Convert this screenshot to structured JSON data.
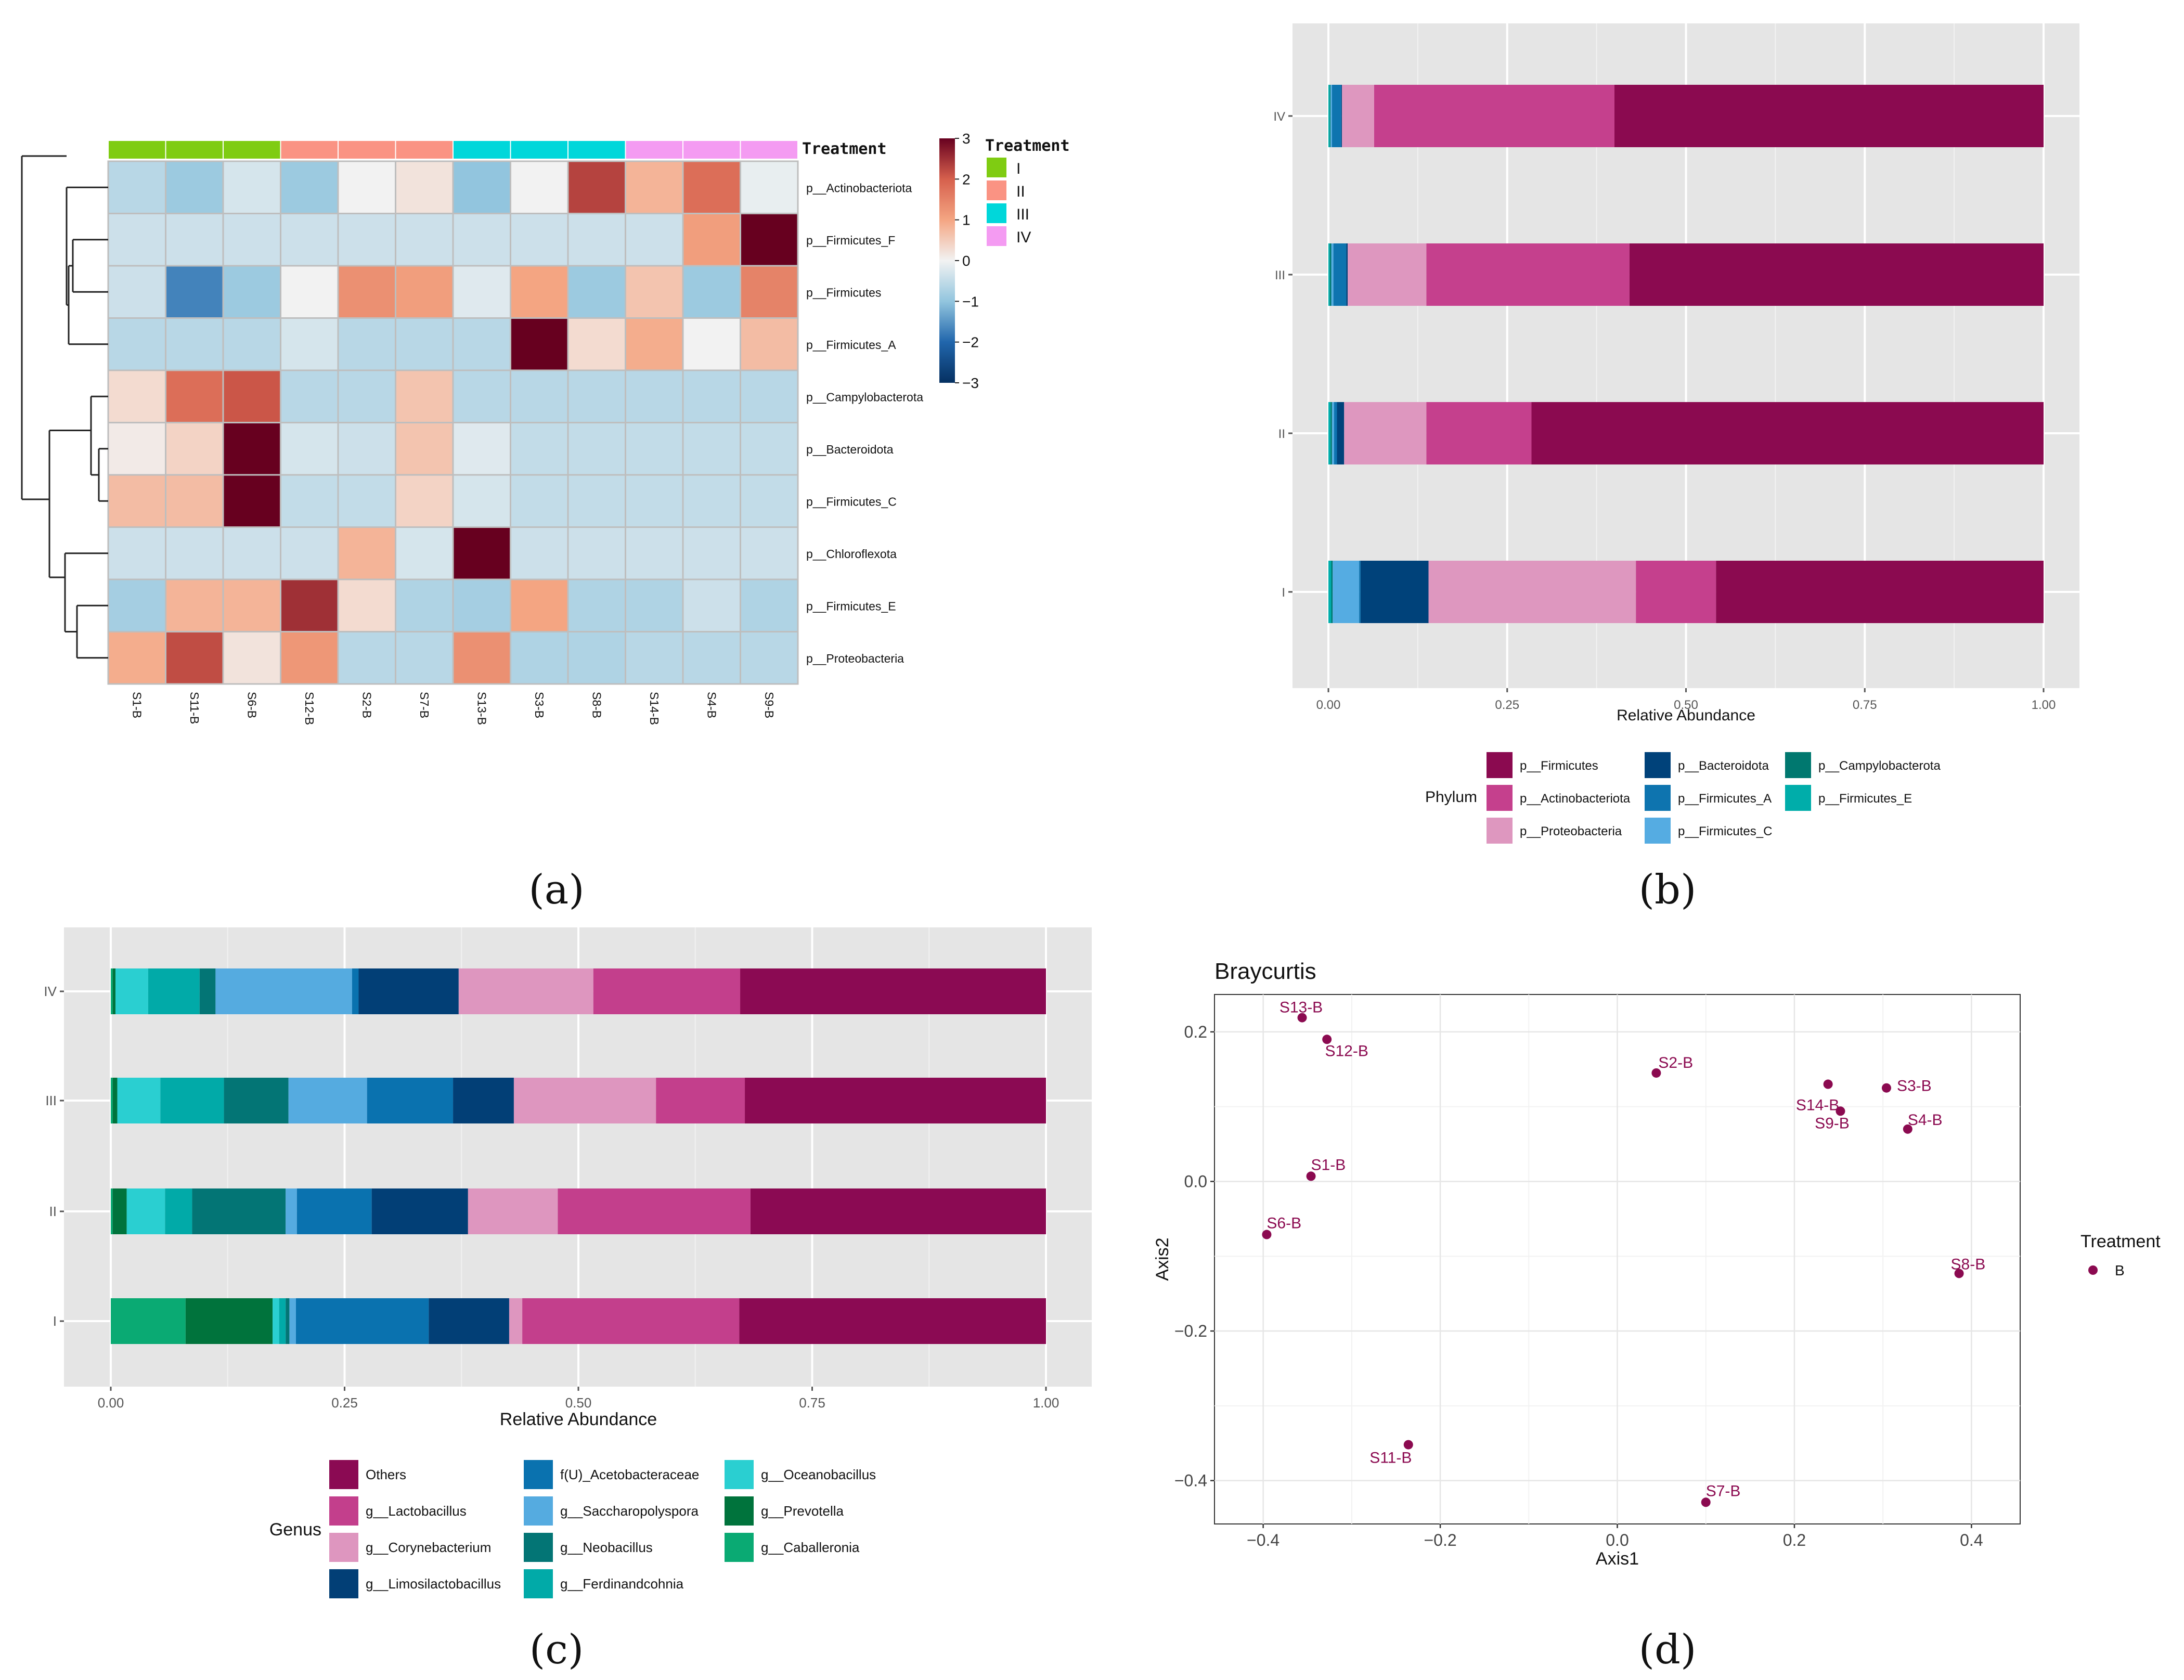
{
  "panel_labels": {
    "a": "(a)",
    "b": "(b)",
    "c": "(c)",
    "d": "(d)"
  },
  "colors": {
    "firmicutes": "#8B0A50",
    "actino": "#C5408D",
    "proteo": "#DE97BF",
    "bacteroidota": "#00427A",
    "firm_a": "#0E74AF",
    "firm_c": "#55ACE2",
    "campylo": "#00786F",
    "firm_e": "#00ADAA",
    "panel_bg": "#E5E5E5",
    "point": "#8B0A50",
    "treat_I": "#7FCC12",
    "treat_II": "#FA9383",
    "treat_III": "#00D7DA",
    "treat_IV": "#F49BF2"
  },
  "chart_data": [
    {
      "id": "a",
      "type": "heatmap",
      "columns": [
        "S1-B",
        "S11-B",
        "S6-B",
        "S12-B",
        "S2-B",
        "S7-B",
        "S13-B",
        "S3-B",
        "S8-B",
        "S14-B",
        "S4-B",
        "S9-B"
      ],
      "rows": [
        "p__Actinobacteriota",
        "p__Firmicutes_F",
        "p__Firmicutes",
        "p__Firmicutes_A",
        "p__Campylobacterota",
        "p__Bacteroidota",
        "p__Firmicutes_C",
        "p__Chloroflexota",
        "p__Firmicutes_E",
        "p__Proteobacteria"
      ],
      "column_treatment": [
        "I",
        "I",
        "I",
        "II",
        "II",
        "II",
        "III",
        "III",
        "III",
        "IV",
        "IV",
        "IV"
      ],
      "values": [
        [
          -0.6,
          -0.9,
          -0.3,
          -0.9,
          0,
          0.2,
          -1,
          0,
          2.3,
          0.8,
          1.8,
          -0.1
        ],
        [
          -0.4,
          -0.4,
          -0.4,
          -0.4,
          -0.4,
          -0.4,
          -0.4,
          -0.4,
          -0.4,
          -0.4,
          1.1,
          3
        ],
        [
          -0.4,
          -1.7,
          -0.9,
          0,
          1.3,
          1.1,
          -0.2,
          1,
          -0.9,
          0.6,
          -0.9,
          1.5
        ],
        [
          -0.6,
          -0.6,
          -0.6,
          -0.3,
          -0.6,
          -0.6,
          -0.6,
          3,
          0.3,
          0.9,
          0,
          0.7
        ],
        [
          0.3,
          1.8,
          2.1,
          -0.6,
          -0.6,
          0.6,
          -0.6,
          -0.6,
          -0.6,
          -0.6,
          -0.6,
          -0.6
        ],
        [
          0.1,
          0.4,
          3,
          -0.3,
          -0.4,
          0.6,
          -0.2,
          -0.5,
          -0.5,
          -0.5,
          -0.5,
          -0.5
        ],
        [
          0.7,
          0.7,
          3,
          -0.5,
          -0.5,
          0.4,
          -0.3,
          -0.5,
          -0.5,
          -0.5,
          -0.5,
          -0.5
        ],
        [
          -0.4,
          -0.4,
          -0.4,
          -0.4,
          0.8,
          -0.3,
          3,
          -0.4,
          -0.4,
          -0.4,
          -0.4,
          -0.4
        ],
        [
          -0.8,
          0.8,
          0.8,
          2.5,
          0.3,
          -0.7,
          -0.8,
          1,
          -0.7,
          -0.7,
          -0.4,
          -0.7
        ],
        [
          0.9,
          2.2,
          0.2,
          1.2,
          -0.6,
          -0.6,
          1.3,
          -0.7,
          -0.7,
          -0.6,
          -0.6,
          -0.6
        ]
      ],
      "legend_title": "Treatment",
      "treatment_annotation_label": "Treatment",
      "treatment_levels": [
        "I",
        "II",
        "III",
        "IV"
      ],
      "scale_ticks": [
        "3",
        "2",
        "1",
        "0",
        "−1",
        "−2",
        "−3"
      ],
      "scale_range": [
        -3,
        3
      ]
    },
    {
      "id": "b",
      "type": "bar",
      "orientation": "horizontal",
      "stacked": true,
      "categories": [
        "I",
        "II",
        "III",
        "IV"
      ],
      "series": [
        {
          "name": "p__Firmicutes_E",
          "key": "firm_e",
          "values": [
            0.004,
            0.003,
            0.002,
            0.002
          ]
        },
        {
          "name": "p__Campylobacterota",
          "key": "campylo",
          "values": [
            0.002,
            0.002,
            0.002,
            0.001
          ]
        },
        {
          "name": "p__Firmicutes_C",
          "key": "firm_c",
          "values": [
            0.037,
            0.003,
            0.003,
            0.002
          ]
        },
        {
          "name": "p__Firmicutes_A",
          "key": "firm_a",
          "values": [
            0.002,
            0.004,
            0.018,
            0.013
          ]
        },
        {
          "name": "p__Bacteroidota",
          "key": "bacteroidota",
          "values": [
            0.095,
            0.01,
            0.002,
            0.001
          ]
        },
        {
          "name": "p__Proteobacteria",
          "key": "proteo",
          "values": [
            0.29,
            0.115,
            0.11,
            0.045
          ]
        },
        {
          "name": "p__Actinobacteriota",
          "key": "actino",
          "values": [
            0.112,
            0.147,
            0.284,
            0.336
          ]
        },
        {
          "name": "p__Firmicutes",
          "key": "firmicutes",
          "values": [
            0.458,
            0.716,
            0.579,
            0.6
          ]
        }
      ],
      "xlabel": "Relative Abundance",
      "xlim": [
        0,
        1
      ],
      "xticks": [
        "0.00",
        "0.25",
        "0.50",
        "0.75",
        "1.00"
      ],
      "legend_title": "Phylum",
      "legend": [
        [
          "p__Firmicutes",
          "p__Actinobacteriota",
          "p__Proteobacteria"
        ],
        [
          "p__Bacteroidota",
          "p__Firmicutes_A",
          "p__Firmicutes_C"
        ],
        [
          "p__Campylobacterota",
          "p__Firmicutes_E"
        ]
      ]
    },
    {
      "id": "c",
      "type": "bar",
      "orientation": "horizontal",
      "stacked": true,
      "categories": [
        "I",
        "II",
        "III",
        "IV"
      ],
      "series": [
        {
          "name": "g__Caballeronia",
          "color": "#0AAA73",
          "values": [
            0.08,
            0.002,
            0.002,
            0.002
          ]
        },
        {
          "name": "g__Prevotella",
          "color": "#00733C",
          "values": [
            0.093,
            0.015,
            0.005,
            0.003
          ]
        },
        {
          "name": "g__Oceanobacillus",
          "color": "#2ACFD1",
          "values": [
            0.007,
            0.041,
            0.046,
            0.035
          ]
        },
        {
          "name": "g__Ferdinandcohnia",
          "color": "#01AAA8",
          "values": [
            0.007,
            0.029,
            0.068,
            0.055
          ]
        },
        {
          "name": "g__Neobacillus",
          "color": "#037575",
          "values": [
            0.004,
            0.1,
            0.069,
            0.017
          ]
        },
        {
          "name": "g__Saccharopolyspora",
          "color": "#55ABE0",
          "values": [
            0.007,
            0.012,
            0.084,
            0.146
          ]
        },
        {
          "name": "f(U)_Acetobacteraceae",
          "color": "#0A72AF",
          "values": [
            0.142,
            0.08,
            0.092,
            0.007
          ]
        },
        {
          "name": "g__Limosilactobacillus",
          "color": "#023F76",
          "values": [
            0.086,
            0.103,
            0.065,
            0.107
          ]
        },
        {
          "name": "g__Corynebacterium",
          "color": "#DE96BF",
          "values": [
            0.014,
            0.096,
            0.152,
            0.144
          ]
        },
        {
          "name": "g__Lactobacillus",
          "color": "#C33F8C",
          "values": [
            0.232,
            0.206,
            0.095,
            0.157
          ]
        },
        {
          "name": "Others",
          "color": "#8B0A53",
          "values": [
            0.328,
            0.316,
            0.322,
            0.327
          ]
        }
      ],
      "xlabel": "Relative Abundance",
      "xlim": [
        0,
        1
      ],
      "xticks": [
        "0.00",
        "0.25",
        "0.50",
        "0.75",
        "1.00"
      ],
      "legend_title": "Genus",
      "legend": [
        [
          "Others",
          "g__Lactobacillus",
          "g__Corynebacterium",
          "g__Limosilactobacillus"
        ],
        [
          "f(U)_Acetobacteraceae",
          "g__Saccharopolyspora",
          "g__Neobacillus",
          "g__Ferdinandcohnia"
        ],
        [
          "g__Oceanobacillus",
          "g__Prevotella",
          "g__Caballeronia"
        ]
      ]
    },
    {
      "id": "d",
      "type": "scatter",
      "title": "Braycurtis",
      "xlabel": "Axis1",
      "ylabel": "Axis2",
      "xlim": [
        -0.455,
        0.455
      ],
      "ylim": [
        -0.458,
        0.25
      ],
      "xticks": [
        -0.4,
        -0.2,
        0,
        0.2,
        0.4
      ],
      "yticks": [
        -0.4,
        -0.2,
        0,
        0.2
      ],
      "xtick_labels": [
        "−0.4",
        "−0.2",
        "0.0",
        "0.2",
        "0.4"
      ],
      "ytick_labels": [
        "−0.4",
        "−0.2",
        "0.0",
        "0.2"
      ],
      "points": [
        {
          "label": "S13-B",
          "x": -0.356,
          "y": 0.219
        },
        {
          "label": "S12-B",
          "x": -0.328,
          "y": 0.19
        },
        {
          "label": "S2-B",
          "x": 0.044,
          "y": 0.145
        },
        {
          "label": "S14-B",
          "x": 0.238,
          "y": 0.13
        },
        {
          "label": "S3-B",
          "x": 0.304,
          "y": 0.125
        },
        {
          "label": "S9-B",
          "x": 0.252,
          "y": 0.094
        },
        {
          "label": "S4-B",
          "x": 0.328,
          "y": 0.07
        },
        {
          "label": "S1-B",
          "x": -0.346,
          "y": 0.007
        },
        {
          "label": "S6-B",
          "x": -0.396,
          "y": -0.071
        },
        {
          "label": "S8-B",
          "x": 0.386,
          "y": -0.123
        },
        {
          "label": "S11-B",
          "x": -0.236,
          "y": -0.352
        },
        {
          "label": "S7-B",
          "x": 0.1,
          "y": -0.429
        }
      ],
      "legend_title": "Treatment",
      "legend_items": [
        "B"
      ]
    }
  ]
}
